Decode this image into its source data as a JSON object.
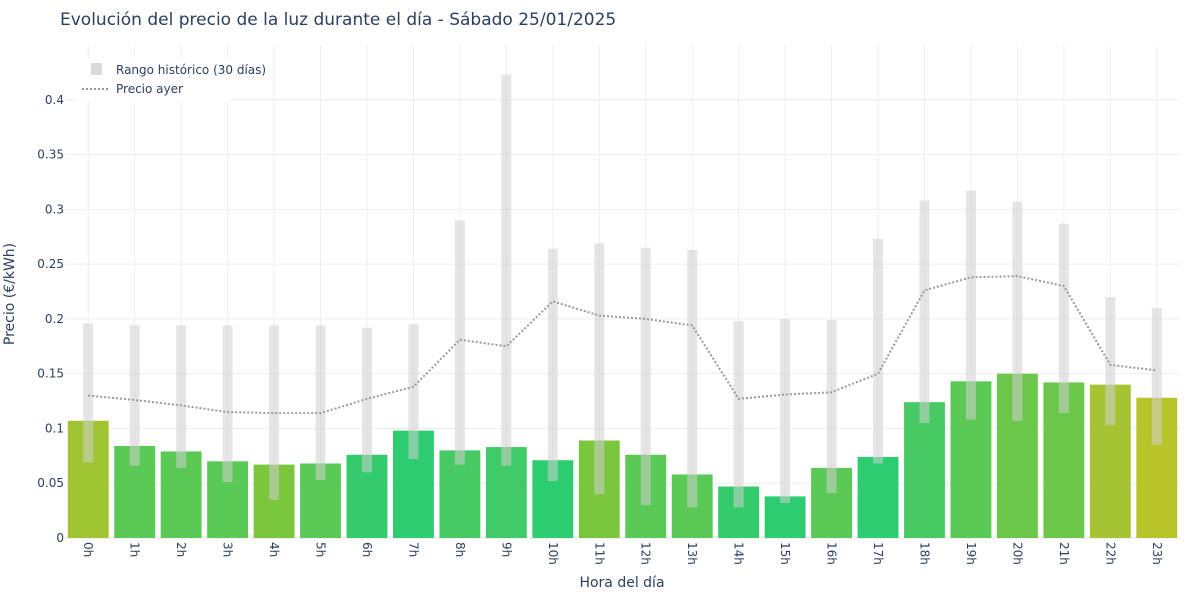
{
  "chart_data": {
    "type": "bar",
    "title": "Evolución del precio de la luz durante el día - Sábado 25/01/2025",
    "xlabel": "Hora del día",
    "ylabel": "Precio (€/kWh)",
    "ylim": [
      0,
      0.45
    ],
    "yticks": [
      0,
      0.05,
      0.1,
      0.15,
      0.2,
      0.25,
      0.3,
      0.35,
      0.4
    ],
    "ytick_labels": [
      "0",
      "0.05",
      "0.1",
      "0.15",
      "0.2",
      "0.25",
      "0.3",
      "0.35",
      "0.4"
    ],
    "categories": [
      "0h",
      "1h",
      "2h",
      "3h",
      "4h",
      "5h",
      "6h",
      "7h",
      "8h",
      "9h",
      "10h",
      "11h",
      "12h",
      "13h",
      "14h",
      "15h",
      "16h",
      "17h",
      "18h",
      "19h",
      "20h",
      "21h",
      "22h",
      "23h"
    ],
    "grid": true,
    "legend_position": "top-left",
    "series": [
      {
        "type": "bar",
        "values": [
          0.107,
          0.084,
          0.079,
          0.07,
          0.067,
          0.068,
          0.076,
          0.098,
          0.08,
          0.083,
          0.071,
          0.089,
          0.076,
          0.058,
          0.047,
          0.038,
          0.064,
          0.074,
          0.124,
          0.143,
          0.15,
          0.142,
          0.14,
          0.128
        ],
        "colors": [
          "#a0c532",
          "#5bc955",
          "#5bc955",
          "#5bc955",
          "#7ac63d",
          "#5bc955",
          "#34cb6d",
          "#2ecc71",
          "#47ca63",
          "#40cb68",
          "#2ecc71",
          "#7ac63d",
          "#5bc955",
          "#5bc955",
          "#34cb6d",
          "#2ecc71",
          "#5bc955",
          "#2ecc71",
          "#47ca63",
          "#5bc955",
          "#6bc84a",
          "#6bc84a",
          "#a6c431",
          "#b8c42a"
        ]
      },
      {
        "name": "Rango histórico (30 días)",
        "type": "range",
        "color": "#d9d9d9",
        "low": [
          0.069,
          0.066,
          0.064,
          0.051,
          0.035,
          0.053,
          0.06,
          0.072,
          0.067,
          0.066,
          0.052,
          0.04,
          0.03,
          0.028,
          0.028,
          0.032,
          0.041,
          0.068,
          0.105,
          0.108,
          0.107,
          0.114,
          0.103,
          0.085
        ],
        "high": [
          0.196,
          0.194,
          0.194,
          0.194,
          0.194,
          0.194,
          0.192,
          0.195,
          0.29,
          0.423,
          0.264,
          0.269,
          0.265,
          0.263,
          0.198,
          0.2,
          0.199,
          0.273,
          0.308,
          0.317,
          0.307,
          0.287,
          0.22,
          0.21
        ]
      },
      {
        "name": "Precio ayer",
        "type": "line",
        "color": "#999999",
        "dash": "dotted",
        "values": [
          0.13,
          0.126,
          0.121,
          0.115,
          0.114,
          0.114,
          0.127,
          0.138,
          0.181,
          0.175,
          0.216,
          0.203,
          0.2,
          0.194,
          0.127,
          0.131,
          0.133,
          0.15,
          0.226,
          0.238,
          0.239,
          0.23,
          0.158,
          0.153
        ]
      }
    ]
  }
}
